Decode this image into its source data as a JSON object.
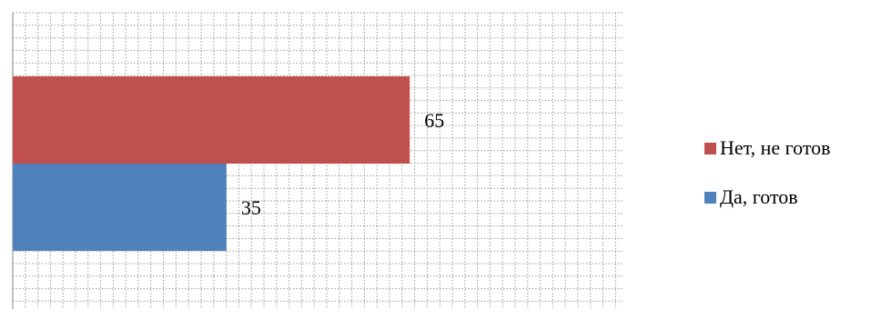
{
  "chart_data": {
    "type": "bar",
    "orientation": "horizontal",
    "stacked": false,
    "xlim": [
      0,
      100
    ],
    "grid": true,
    "legend_position": "right",
    "series": [
      {
        "name": "Нет, не готов",
        "value": 65,
        "label": "65",
        "color": "#c0504d"
      },
      {
        "name": "Да, готов",
        "value": 35,
        "label": "35",
        "color": "#4f81bd"
      }
    ]
  }
}
